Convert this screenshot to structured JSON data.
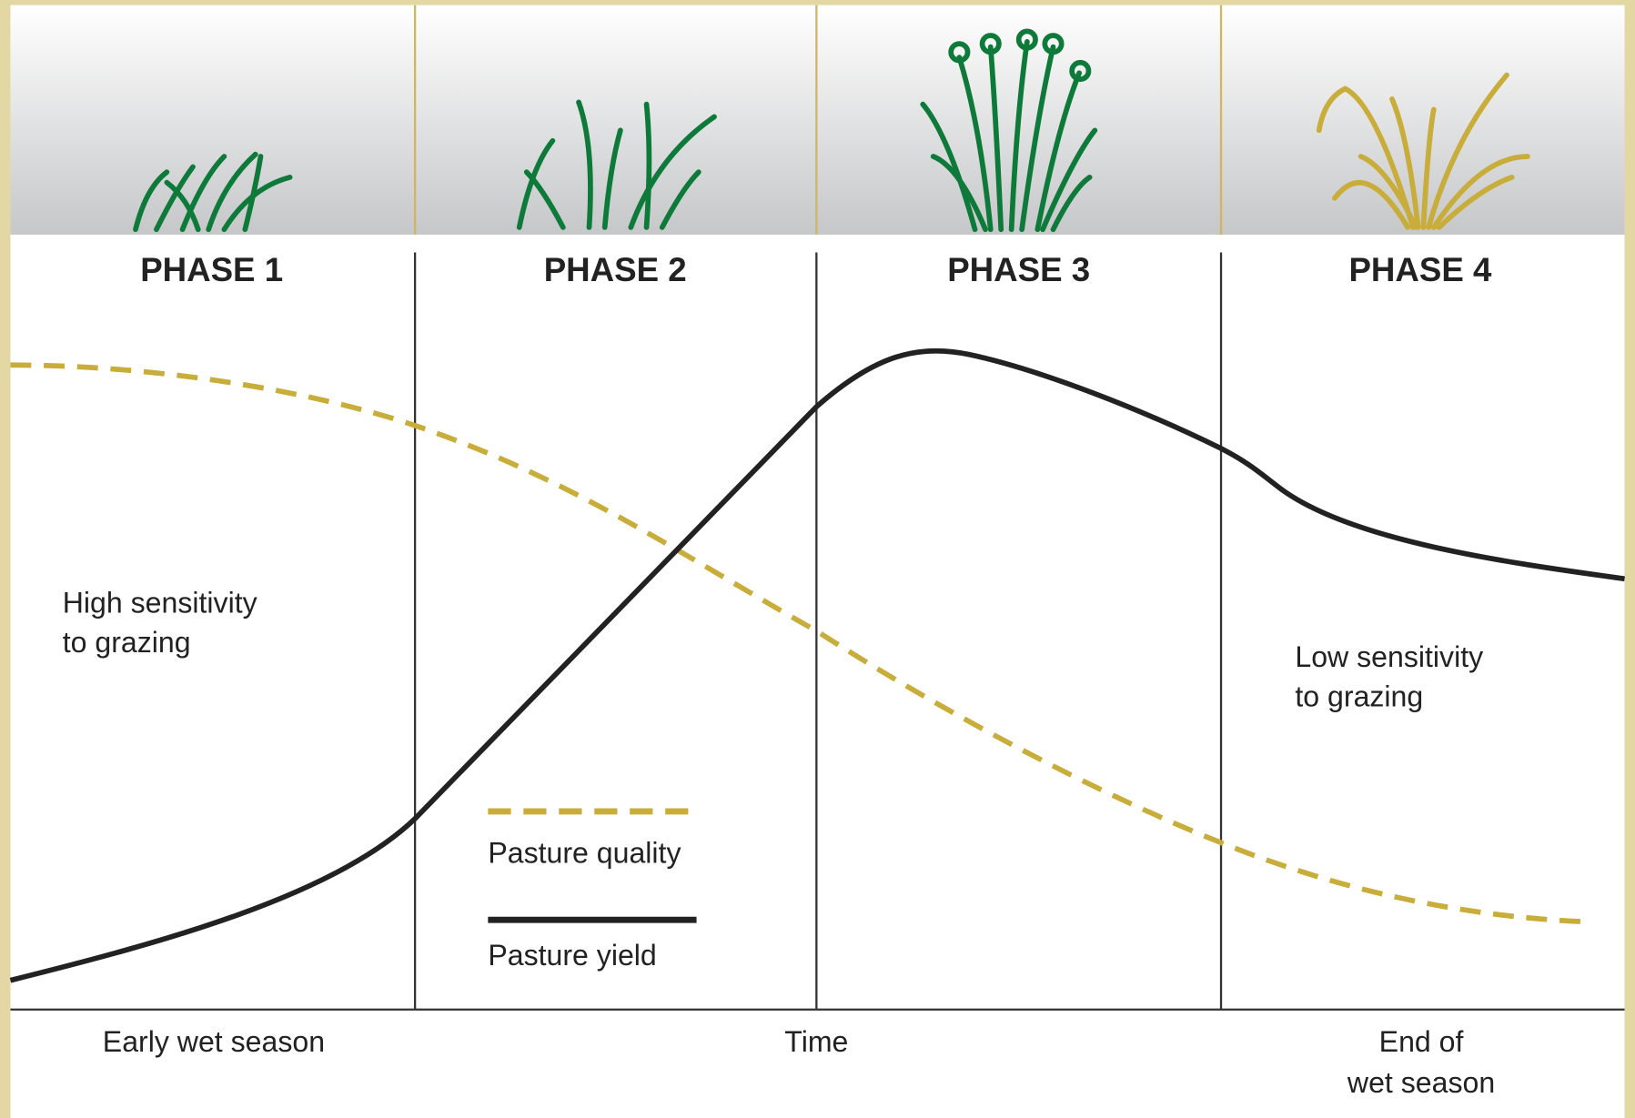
{
  "header": {
    "phases": [
      "PHASE 1",
      "PHASE 2",
      "PHASE 3",
      "PHASE 4"
    ]
  },
  "annotations": {
    "high_sensitivity": [
      "High sensitivity",
      "to grazing"
    ],
    "low_sensitivity": [
      "Low sensitivity",
      "to grazing"
    ]
  },
  "legend": [
    "Pasture quality",
    "Pasture yield"
  ],
  "x_axis": {
    "start": "Early wet season",
    "middle": "Time",
    "end": [
      "End of",
      "wet season"
    ]
  }
}
